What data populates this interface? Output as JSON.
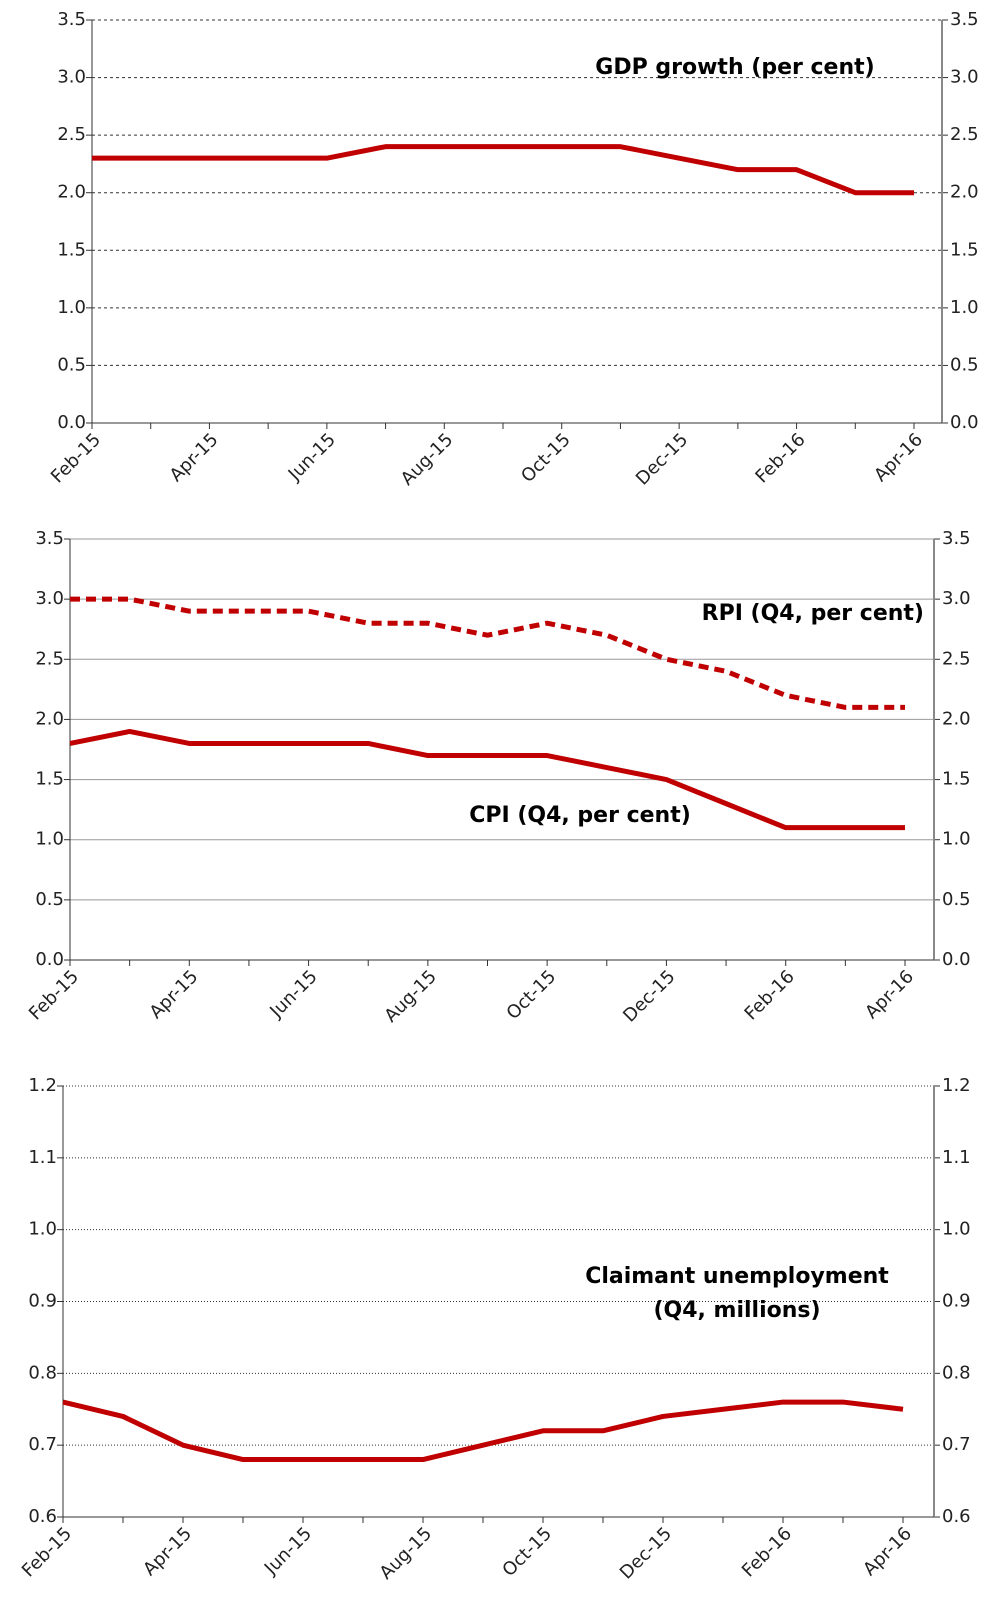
{
  "chart_data": [
    {
      "type": "line",
      "categories": [
        "Feb-15",
        null,
        "Apr-15",
        null,
        "Jun-15",
        null,
        "Aug-15",
        null,
        "Oct-15",
        null,
        "Dec-15",
        null,
        "Feb-16",
        null,
        "Apr-16"
      ],
      "series": [
        {
          "name": "GDP growth (per cent)",
          "color": "#c00000",
          "line_style": "solid",
          "values": [
            2.3,
            2.3,
            2.3,
            2.3,
            2.3,
            2.4,
            2.4,
            2.4,
            2.4,
            2.4,
            2.3,
            2.2,
            2.2,
            2.0,
            2.0
          ]
        }
      ],
      "ylim": [
        0,
        3.5
      ],
      "yticks": [
        {
          "value": 0,
          "label": "0.0"
        },
        0.5,
        {
          "value": 1,
          "label": "1.0"
        },
        1.5,
        {
          "value": 2,
          "label": "2.0"
        },
        2.5,
        {
          "value": 3,
          "label": "3.0"
        },
        3.5
      ],
      "y2lim": [
        0,
        3.5
      ],
      "y2ticks": [
        {
          "value": 0,
          "label": "0.0"
        },
        0.5,
        {
          "value": 1,
          "label": "1.0"
        },
        1.5,
        {
          "value": 2,
          "label": "2.0"
        },
        2.5,
        {
          "value": 3,
          "label": "3.0"
        },
        3.5
      ],
      "grid": true,
      "grid_style": "dashed"
    },
    {
      "type": "line",
      "categories": [
        "Feb-15",
        null,
        "Apr-15",
        null,
        "Jun-15",
        null,
        "Aug-15",
        null,
        "Oct-15",
        null,
        "Dec-15",
        null,
        "Feb-16",
        null,
        "Apr-16"
      ],
      "series": [
        {
          "name": "RPI (Q4, per cent)",
          "color": "#c00000",
          "line_style": "dashed",
          "values": [
            3.0,
            3.0,
            2.9,
            2.9,
            2.9,
            2.8,
            2.8,
            2.7,
            2.8,
            2.7,
            2.5,
            2.4,
            2.2,
            2.1,
            2.1
          ]
        },
        {
          "name": "CPI (Q4, per cent)",
          "color": "#c00000",
          "line_style": "solid",
          "values": [
            1.8,
            1.9,
            1.8,
            1.8,
            1.8,
            1.8,
            1.7,
            1.7,
            1.7,
            1.6,
            1.5,
            1.3,
            1.1,
            1.1,
            1.1
          ]
        }
      ],
      "ylim": [
        0,
        3.5
      ],
      "yticks": [
        {
          "value": 0,
          "label": "0.0"
        },
        0.5,
        {
          "value": 1,
          "label": "1.0"
        },
        1.5,
        {
          "value": 2,
          "label": "2.0"
        },
        2.5,
        {
          "value": 3,
          "label": "3.0"
        },
        3.5
      ],
      "y2lim": [
        0,
        3.5
      ],
      "y2ticks": [
        {
          "value": 0,
          "label": "0.0"
        },
        0.5,
        {
          "value": 1,
          "label": "1.0"
        },
        1.5,
        {
          "value": 2,
          "label": "2.0"
        },
        2.5,
        {
          "value": 3,
          "label": "3.0"
        },
        3.5
      ],
      "grid": true,
      "grid_style": "solid"
    },
    {
      "type": "line",
      "categories": [
        "Feb-15",
        null,
        "Apr-15",
        null,
        "Jun-15",
        null,
        "Aug-15",
        null,
        "Oct-15",
        null,
        "Dec-15",
        null,
        "Feb-16",
        null,
        "Apr-16"
      ],
      "annotation": [
        "Claimant unemployment",
        "(Q4, millions)"
      ],
      "series": [
        {
          "color": "#c00000",
          "line_style": "solid",
          "values": [
            0.76,
            0.74,
            0.7,
            0.68,
            0.68,
            0.68,
            0.68,
            0.7,
            0.72,
            0.72,
            0.74,
            0.75,
            0.76,
            0.76,
            0.75
          ]
        }
      ],
      "ylim": [
        0.6,
        1.2
      ],
      "yticks": [
        0.6,
        0.7,
        0.8,
        0.9,
        {
          "value": 1,
          "label": "1.0"
        },
        1.1,
        1.2
      ],
      "y2lim": [
        0.6,
        1.2
      ],
      "y2ticks": [
        0.6,
        0.7,
        0.8,
        0.9,
        {
          "value": 1,
          "label": "1.0"
        },
        1.1,
        1.2
      ],
      "grid": true,
      "grid_style": "dotted"
    }
  ]
}
